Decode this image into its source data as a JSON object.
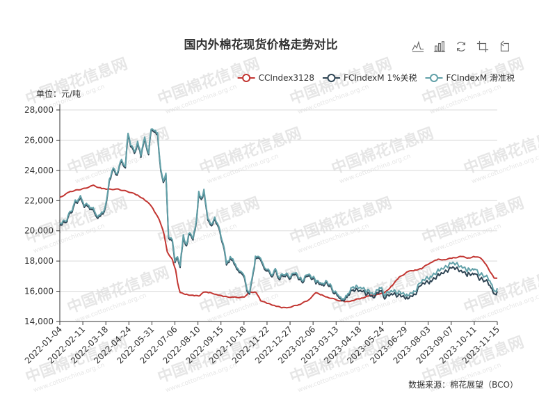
{
  "chart_data": {
    "type": "line",
    "title": "国内外棉花现货价格走势对比",
    "unit_label": "单位：元/吨",
    "source": "数据来源：棉花展望（BCO）",
    "legend_placement": "top-right",
    "ylim": [
      14000,
      28000
    ],
    "y_ticks": [
      14000,
      16000,
      18000,
      20000,
      22000,
      24000,
      26000,
      28000
    ],
    "y_tick_labels": [
      "14,000",
      "16,000",
      "18,000",
      "20,000",
      "22,000",
      "24,000",
      "26,000",
      "28,000"
    ],
    "grid": true,
    "x_range": [
      "2022-01-04",
      "2023-11-15"
    ],
    "x_tick_labels": [
      "2022-01-04",
      "2022-02-11",
      "2022-03-18",
      "2022-04-24",
      "2022-05-31",
      "2022-07-06",
      "2022-08-10",
      "2022-09-15",
      "2022-10-18",
      "2022-11-22",
      "2022-12-27",
      "2023-02-06",
      "2023-03-13",
      "2023-04-18",
      "2023-05-24",
      "2023-06-29",
      "2023-08-03",
      "2023-09-07",
      "2023-10-11",
      "2023-11-15"
    ],
    "series": [
      {
        "name": "CCIndex3128",
        "color": "#c23531",
        "points": [
          [
            "2022-01-04",
            22200
          ],
          [
            "2022-01-20",
            22600
          ],
          [
            "2022-02-11",
            22800
          ],
          [
            "2022-02-25",
            23000
          ],
          [
            "2022-03-10",
            22800
          ],
          [
            "2022-03-18",
            22750
          ],
          [
            "2022-04-05",
            22750
          ],
          [
            "2022-04-24",
            22550
          ],
          [
            "2022-05-05",
            22350
          ],
          [
            "2022-05-15",
            22100
          ],
          [
            "2022-05-25",
            21700
          ],
          [
            "2022-05-31",
            21300
          ],
          [
            "2022-06-08",
            20700
          ],
          [
            "2022-06-15",
            19800
          ],
          [
            "2022-06-20",
            18600
          ],
          [
            "2022-06-28",
            18100
          ],
          [
            "2022-07-03",
            17400
          ],
          [
            "2022-07-06",
            16600
          ],
          [
            "2022-07-10",
            15900
          ],
          [
            "2022-07-20",
            15800
          ],
          [
            "2022-08-01",
            15700
          ],
          [
            "2022-08-10",
            15700
          ],
          [
            "2022-08-15",
            15950
          ],
          [
            "2022-08-25",
            15900
          ],
          [
            "2022-09-05",
            15800
          ],
          [
            "2022-09-15",
            15650
          ],
          [
            "2022-10-01",
            15600
          ],
          [
            "2022-10-18",
            15600
          ],
          [
            "2022-10-25",
            15950
          ],
          [
            "2022-11-05",
            15950
          ],
          [
            "2022-11-12",
            15400
          ],
          [
            "2022-11-22",
            15200
          ],
          [
            "2022-12-05",
            15050
          ],
          [
            "2022-12-15",
            14900
          ],
          [
            "2022-12-27",
            14950
          ],
          [
            "2023-01-10",
            15100
          ],
          [
            "2023-01-25",
            15400
          ],
          [
            "2023-02-06",
            15900
          ],
          [
            "2023-02-15",
            15750
          ],
          [
            "2023-02-25",
            15600
          ],
          [
            "2023-03-13",
            15400
          ],
          [
            "2023-03-25",
            15300
          ],
          [
            "2023-04-05",
            15400
          ],
          [
            "2023-04-18",
            15550
          ],
          [
            "2023-05-01",
            15700
          ],
          [
            "2023-05-15",
            15800
          ],
          [
            "2023-05-24",
            15900
          ],
          [
            "2023-06-05",
            16400
          ],
          [
            "2023-06-15",
            16900
          ],
          [
            "2023-06-29",
            17300
          ],
          [
            "2023-07-10",
            17400
          ],
          [
            "2023-07-20",
            17500
          ],
          [
            "2023-08-03",
            17900
          ],
          [
            "2023-08-15",
            18100
          ],
          [
            "2023-08-25",
            18100
          ],
          [
            "2023-09-07",
            18200
          ],
          [
            "2023-09-20",
            18300
          ],
          [
            "2023-10-01",
            18200
          ],
          [
            "2023-10-11",
            18300
          ],
          [
            "2023-10-20",
            18200
          ],
          [
            "2023-10-28",
            17800
          ],
          [
            "2023-11-05",
            17200
          ],
          [
            "2023-11-10",
            16900
          ],
          [
            "2023-11-15",
            16850
          ]
        ]
      },
      {
        "name": "FCIndexM 1%关税",
        "color": "#2f4554",
        "points": [
          [
            "2022-01-04",
            20400
          ],
          [
            "2022-01-12",
            20500
          ],
          [
            "2022-01-20",
            21100
          ],
          [
            "2022-01-28",
            21800
          ],
          [
            "2022-02-05",
            22100
          ],
          [
            "2022-02-11",
            21700
          ],
          [
            "2022-02-18",
            21600
          ],
          [
            "2022-02-25",
            21300
          ],
          [
            "2022-03-02",
            21000
          ],
          [
            "2022-03-08",
            20900
          ],
          [
            "2022-03-14",
            21300
          ],
          [
            "2022-03-18",
            22000
          ],
          [
            "2022-03-22",
            23400
          ],
          [
            "2022-03-28",
            24000
          ],
          [
            "2022-04-03",
            23700
          ],
          [
            "2022-04-10",
            24600
          ],
          [
            "2022-04-16",
            24200
          ],
          [
            "2022-04-20",
            26500
          ],
          [
            "2022-04-24",
            25600
          ],
          [
            "2022-04-30",
            25100
          ],
          [
            "2022-05-05",
            25800
          ],
          [
            "2022-05-10",
            25000
          ],
          [
            "2022-05-16",
            26000
          ],
          [
            "2022-05-22",
            25100
          ],
          [
            "2022-05-26",
            26700
          ],
          [
            "2022-05-31",
            26500
          ],
          [
            "2022-06-05",
            26300
          ],
          [
            "2022-06-10",
            24000
          ],
          [
            "2022-06-14",
            23200
          ],
          [
            "2022-06-18",
            23800
          ],
          [
            "2022-06-22",
            19500
          ],
          [
            "2022-06-28",
            19300
          ],
          [
            "2022-07-02",
            17800
          ],
          [
            "2022-07-06",
            18200
          ],
          [
            "2022-07-10",
            17500
          ],
          [
            "2022-07-15",
            19600
          ],
          [
            "2022-07-20",
            19000
          ],
          [
            "2022-07-25",
            19900
          ],
          [
            "2022-07-30",
            19300
          ],
          [
            "2022-08-04",
            20500
          ],
          [
            "2022-08-08",
            22400
          ],
          [
            "2022-08-12",
            22000
          ],
          [
            "2022-08-16",
            22600
          ],
          [
            "2022-08-22",
            20800
          ],
          [
            "2022-08-28",
            20200
          ],
          [
            "2022-09-02",
            20900
          ],
          [
            "2022-09-08",
            20100
          ],
          [
            "2022-09-15",
            19100
          ],
          [
            "2022-09-20",
            17700
          ],
          [
            "2022-09-26",
            18200
          ],
          [
            "2022-10-02",
            17800
          ],
          [
            "2022-10-08",
            17400
          ],
          [
            "2022-10-14",
            17100
          ],
          [
            "2022-10-18",
            16800
          ],
          [
            "2022-10-22",
            16000
          ],
          [
            "2022-10-26",
            15700
          ],
          [
            "2022-10-30",
            16800
          ],
          [
            "2022-11-04",
            18100
          ],
          [
            "2022-11-10",
            18300
          ],
          [
            "2022-11-16",
            17600
          ],
          [
            "2022-11-22",
            17400
          ],
          [
            "2022-11-28",
            17000
          ],
          [
            "2022-12-05",
            17300
          ],
          [
            "2022-12-12",
            16800
          ],
          [
            "2022-12-19",
            17100
          ],
          [
            "2022-12-27",
            16900
          ],
          [
            "2023-01-05",
            17200
          ],
          [
            "2023-01-15",
            16600
          ],
          [
            "2023-01-25",
            17100
          ],
          [
            "2023-02-06",
            16600
          ],
          [
            "2023-02-15",
            16400
          ],
          [
            "2023-02-25",
            16500
          ],
          [
            "2023-03-05",
            16000
          ],
          [
            "2023-03-13",
            15700
          ],
          [
            "2023-03-20",
            15300
          ],
          [
            "2023-03-28",
            15700
          ],
          [
            "2023-04-05",
            16100
          ],
          [
            "2023-04-18",
            16000
          ],
          [
            "2023-04-28",
            15800
          ],
          [
            "2023-05-08",
            15600
          ],
          [
            "2023-05-16",
            16100
          ],
          [
            "2023-05-24",
            15600
          ],
          [
            "2023-06-05",
            15800
          ],
          [
            "2023-06-15",
            15700
          ],
          [
            "2023-06-29",
            15600
          ],
          [
            "2023-07-10",
            15800
          ],
          [
            "2023-07-20",
            16500
          ],
          [
            "2023-08-03",
            16600
          ],
          [
            "2023-08-15",
            17100
          ],
          [
            "2023-08-25",
            17300
          ],
          [
            "2023-09-07",
            17600
          ],
          [
            "2023-09-20",
            17300
          ],
          [
            "2023-10-01",
            17100
          ],
          [
            "2023-10-11",
            17200
          ],
          [
            "2023-10-20",
            16800
          ],
          [
            "2023-10-28",
            16700
          ],
          [
            "2023-11-05",
            16300
          ],
          [
            "2023-11-10",
            15700
          ],
          [
            "2023-11-15",
            16000
          ]
        ]
      },
      {
        "name": "FCIndexM 滑准税",
        "color": "#61a0a8",
        "points": [
          [
            "2022-01-04",
            20500
          ],
          [
            "2022-01-12",
            20600
          ],
          [
            "2022-01-20",
            21200
          ],
          [
            "2022-01-28",
            21900
          ],
          [
            "2022-02-05",
            22200
          ],
          [
            "2022-02-11",
            21800
          ],
          [
            "2022-02-18",
            21700
          ],
          [
            "2022-02-25",
            21400
          ],
          [
            "2022-03-02",
            21100
          ],
          [
            "2022-03-08",
            21000
          ],
          [
            "2022-03-14",
            21400
          ],
          [
            "2022-03-18",
            22100
          ],
          [
            "2022-03-22",
            23500
          ],
          [
            "2022-03-28",
            24100
          ],
          [
            "2022-04-03",
            23800
          ],
          [
            "2022-04-10",
            24700
          ],
          [
            "2022-04-16",
            24300
          ],
          [
            "2022-04-20",
            26600
          ],
          [
            "2022-04-24",
            25700
          ],
          [
            "2022-04-30",
            25200
          ],
          [
            "2022-05-05",
            25900
          ],
          [
            "2022-05-10",
            25100
          ],
          [
            "2022-05-16",
            26100
          ],
          [
            "2022-05-22",
            25200
          ],
          [
            "2022-05-26",
            26800
          ],
          [
            "2022-05-31",
            26600
          ],
          [
            "2022-06-05",
            26400
          ],
          [
            "2022-06-10",
            24100
          ],
          [
            "2022-06-14",
            23300
          ],
          [
            "2022-06-18",
            23900
          ],
          [
            "2022-06-22",
            19600
          ],
          [
            "2022-06-28",
            19400
          ],
          [
            "2022-07-02",
            17900
          ],
          [
            "2022-07-06",
            18300
          ],
          [
            "2022-07-10",
            17600
          ],
          [
            "2022-07-15",
            19700
          ],
          [
            "2022-07-20",
            19100
          ],
          [
            "2022-07-25",
            20000
          ],
          [
            "2022-07-30",
            19400
          ],
          [
            "2022-08-04",
            20600
          ],
          [
            "2022-08-08",
            22500
          ],
          [
            "2022-08-12",
            22100
          ],
          [
            "2022-08-16",
            22700
          ],
          [
            "2022-08-22",
            20900
          ],
          [
            "2022-08-28",
            20300
          ],
          [
            "2022-09-02",
            21000
          ],
          [
            "2022-09-08",
            20200
          ],
          [
            "2022-09-15",
            19200
          ],
          [
            "2022-09-20",
            17800
          ],
          [
            "2022-09-26",
            18300
          ],
          [
            "2022-10-02",
            17900
          ],
          [
            "2022-10-08",
            17500
          ],
          [
            "2022-10-14",
            17200
          ],
          [
            "2022-10-18",
            16900
          ],
          [
            "2022-10-22",
            16100
          ],
          [
            "2022-10-26",
            15800
          ],
          [
            "2022-10-30",
            16900
          ],
          [
            "2022-11-04",
            18200
          ],
          [
            "2022-11-10",
            18400
          ],
          [
            "2022-11-16",
            17700
          ],
          [
            "2022-11-22",
            17500
          ],
          [
            "2022-11-28",
            17100
          ],
          [
            "2022-12-05",
            17400
          ],
          [
            "2022-12-12",
            16900
          ],
          [
            "2022-12-19",
            17200
          ],
          [
            "2022-12-27",
            17000
          ],
          [
            "2023-01-05",
            17300
          ],
          [
            "2023-01-15",
            16700
          ],
          [
            "2023-01-25",
            17200
          ],
          [
            "2023-02-06",
            16700
          ],
          [
            "2023-02-15",
            16500
          ],
          [
            "2023-02-25",
            16600
          ],
          [
            "2023-03-05",
            16100
          ],
          [
            "2023-03-13",
            15800
          ],
          [
            "2023-03-20",
            15400
          ],
          [
            "2023-03-28",
            15800
          ],
          [
            "2023-04-05",
            16300
          ],
          [
            "2023-04-18",
            16200
          ],
          [
            "2023-04-28",
            16000
          ],
          [
            "2023-05-08",
            15800
          ],
          [
            "2023-05-16",
            16300
          ],
          [
            "2023-05-24",
            15800
          ],
          [
            "2023-06-05",
            16000
          ],
          [
            "2023-06-15",
            15900
          ],
          [
            "2023-06-29",
            15800
          ],
          [
            "2023-07-10",
            16000
          ],
          [
            "2023-07-20",
            16700
          ],
          [
            "2023-08-03",
            16900
          ],
          [
            "2023-08-15",
            17400
          ],
          [
            "2023-08-25",
            17600
          ],
          [
            "2023-09-07",
            17900
          ],
          [
            "2023-09-20",
            17600
          ],
          [
            "2023-10-01",
            17400
          ],
          [
            "2023-10-11",
            17500
          ],
          [
            "2023-10-20",
            17100
          ],
          [
            "2023-10-28",
            17000
          ],
          [
            "2023-11-05",
            16600
          ],
          [
            "2023-11-10",
            15900
          ],
          [
            "2023-11-15",
            16200
          ]
        ]
      }
    ]
  },
  "toolbox": {
    "items": [
      {
        "id": "line",
        "icon": "line-chart-icon"
      },
      {
        "id": "bar",
        "icon": "bar-chart-icon"
      },
      {
        "id": "restore",
        "icon": "restore-icon"
      },
      {
        "id": "zoom",
        "icon": "zoom-icon"
      },
      {
        "id": "zoom-back",
        "icon": "zoom-back-icon"
      }
    ]
  },
  "watermark": {
    "text": "中国棉花信息网",
    "subtext": "www.cottonchina.org.cn",
    "color": "#e6e6e6"
  }
}
